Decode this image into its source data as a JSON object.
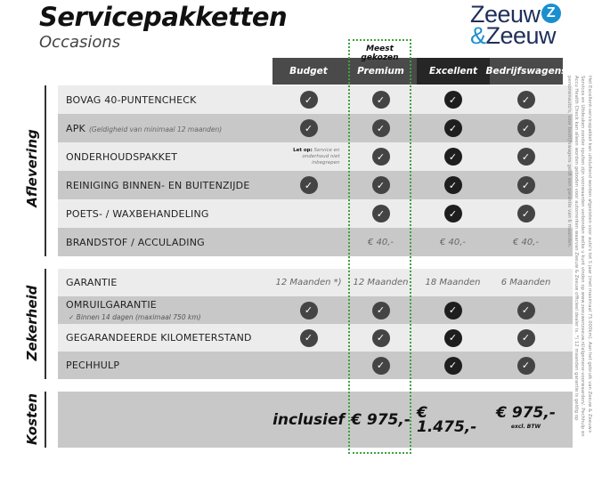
{
  "header": {
    "title": "Servicepakketten",
    "subtitle": "Occasions",
    "logo": {
      "line1": "Zeeuw",
      "line2": "Zeeuw",
      "amp": "&"
    },
    "most_chosen": "Meest gekozen"
  },
  "columns": [
    "Budget",
    "Premium",
    "Excellent",
    "Bedrijfswagens"
  ],
  "colors": {
    "header_dark": "#4a4a4a",
    "header_excellent": "#262626",
    "row_light": "#ececec",
    "row_dark": "#c8c8c8",
    "highlight": "#3ea33e"
  },
  "sections": {
    "aflevering": "Aflevering",
    "zekerheid": "Zekerheid",
    "kosten": "Kosten"
  },
  "aflevering": [
    {
      "label": "BOVAG 40-PUNTENCHECK",
      "cells": [
        "check",
        "check",
        "check",
        "check"
      ]
    },
    {
      "label": "APK",
      "note": "(Geldigheid van minimaal 12 maanden)",
      "cells": [
        "check",
        "check",
        "check",
        "check"
      ]
    },
    {
      "label": "ONDERHOUDSPAKKET",
      "cells": [
        "note",
        "check",
        "check",
        "check"
      ],
      "budget_note_bold": "Let op:",
      "budget_note": "Service en onderhoud niet inbegrepen"
    },
    {
      "label": "REINIGING BINNEN- EN BUITENZIJDE",
      "cells": [
        "check",
        "check",
        "check",
        "check"
      ]
    },
    {
      "label": "POETS- / WAXBEHANDELING",
      "cells": [
        "",
        "check",
        "check",
        "check"
      ]
    },
    {
      "label": "BRANDSTOF / ACCULADING",
      "cells": [
        "",
        "€ 40,-",
        "€ 40,-",
        "€ 40,-"
      ]
    }
  ],
  "zekerheid": [
    {
      "label": "GARANTIE",
      "cells": [
        "12 Maanden *)",
        "12 Maanden",
        "18 Maanden",
        "6 Maanden"
      ]
    },
    {
      "label": "OMRUILGARANTIE",
      "sub": "Binnen 14 dagen (maximaal 750 km)",
      "cells": [
        "check",
        "check",
        "check",
        "check"
      ]
    },
    {
      "label": "GEGARANDEERDE KILOMETERSTAND",
      "cells": [
        "check",
        "check",
        "check",
        "check"
      ]
    },
    {
      "label": "PECHHULP",
      "cells": [
        "",
        "check",
        "check",
        "check"
      ]
    }
  ],
  "kosten": {
    "cells": [
      "inclusief",
      "€ 975,-",
      "€ 1.475,-",
      "€ 975,-"
    ],
    "excl": "excl. BTW"
  },
  "footnote": "Het Excellent-servicepakket kan uitsluitend worden afgesloten voor auto's tot 5 jaar (met maximaal 75.000km). Aan het gebruik van Zeeuw & Zeeuw+ Services en Uitdeuken zonder spuiten zijn voorwaarden verbonden welke u kunt vinden op www.zeeuwenzeeuw.nl/algemene-voorwaarden/. Pechhulp en Accu Health Check kan alleen worden geboden voor automerken waarvan Zeeuw & Zeeuw officieel dealer is. *) 12 maanden garantie is geldig op personenauto's, voor bedrijfswagens geldt een garantie van 6 maanden."
}
